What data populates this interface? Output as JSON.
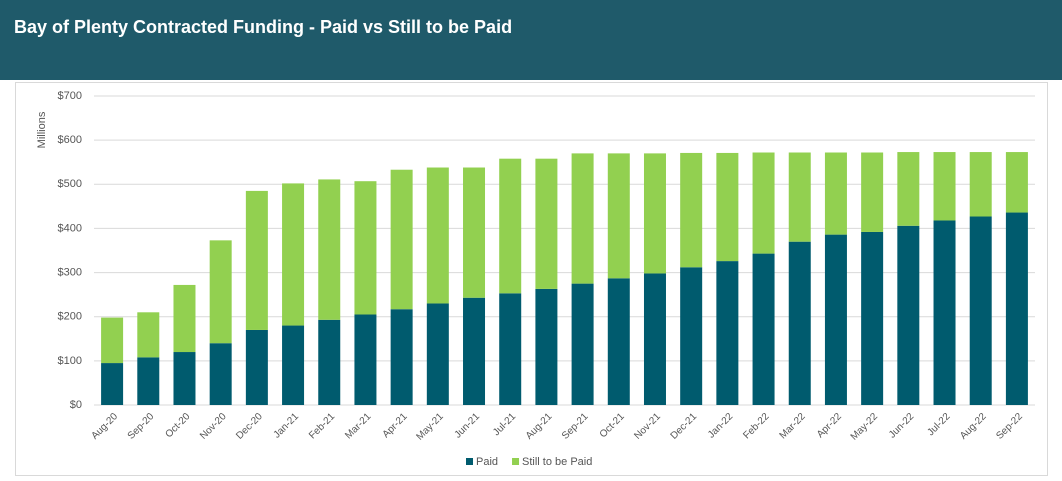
{
  "chart_data": {
    "type": "stacked_bar",
    "title": "Bay of Plenty Contracted Funding - Paid vs Still to be Paid",
    "y_label": "Millions",
    "categories": [
      "Aug-20",
      "Sep-20",
      "Oct-20",
      "Nov-20",
      "Dec-20",
      "Jan-21",
      "Feb-21",
      "Mar-21",
      "Apr-21",
      "May-21",
      "Jun-21",
      "Jul-21",
      "Aug-21",
      "Sep-21",
      "Oct-21",
      "Nov-21",
      "Dec-21",
      "Jan-22",
      "Feb-22",
      "Mar-22",
      "Apr-22",
      "May-22",
      "Jun-22",
      "Jul-22",
      "Aug-22",
      "Sep-22"
    ],
    "series": [
      {
        "name": "Paid",
        "color": "#005b6e",
        "values": [
          95,
          108,
          120,
          140,
          170,
          180,
          193,
          205,
          217,
          230,
          243,
          253,
          263,
          275,
          287,
          298,
          312,
          326,
          343,
          370,
          386,
          392,
          406,
          418,
          427,
          436
        ]
      },
      {
        "name": "Still to be Paid",
        "color": "#92d050",
        "values": [
          103,
          102,
          152,
          233,
          315,
          322,
          318,
          302,
          316,
          308,
          295,
          305,
          295,
          295,
          283,
          272,
          259,
          245,
          229,
          202,
          186,
          180,
          167,
          155,
          146,
          137
        ]
      }
    ],
    "ylim": [
      0,
      700
    ],
    "yticks": [
      {
        "value": 0,
        "label": "$0"
      },
      {
        "value": 100,
        "label": "$100"
      },
      {
        "value": 200,
        "label": "$200"
      },
      {
        "value": 300,
        "label": "$300"
      },
      {
        "value": 400,
        "label": "$400"
      },
      {
        "value": 500,
        "label": "$500"
      },
      {
        "value": 600,
        "label": "$600"
      },
      {
        "value": 700,
        "label": "$700"
      }
    ],
    "grid": true,
    "legend": "bottom"
  }
}
